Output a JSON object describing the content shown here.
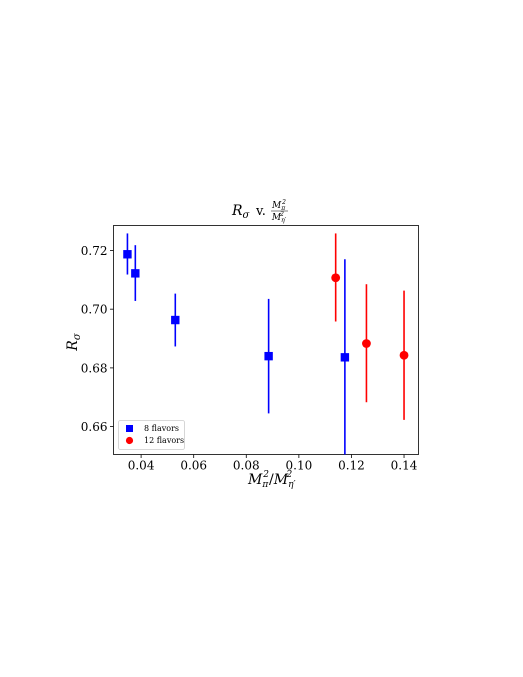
{
  "chart_data": {
    "type": "scatter",
    "title": {
      "lhs": "R",
      "lhs_sub": "σ",
      "connector": "v.",
      "num": "M",
      "num_sup": "2",
      "num_sub": "π",
      "den": "M",
      "den_sup": "2",
      "den_sub": "η′"
    },
    "xlabel": {
      "a": "M",
      "a_sup": "2",
      "a_sub": "π",
      "slash": "/",
      "b": "M",
      "b_sup": "2",
      "b_sub": "η′"
    },
    "ylabel": {
      "base": "R",
      "sub": "σ"
    },
    "xlim": [
      0.0295,
      0.1455
    ],
    "ylim": [
      0.6505,
      0.7285
    ],
    "xticks": [
      0.04,
      0.06,
      0.08,
      0.1,
      0.12,
      0.14
    ],
    "xtick_labels": [
      "0.04",
      "0.06",
      "0.08",
      "0.10",
      "0.12",
      "0.14"
    ],
    "yticks": [
      0.66,
      0.68,
      0.7,
      0.72
    ],
    "ytick_labels": [
      "0.66",
      "0.68",
      "0.70",
      "0.72"
    ],
    "grid": false,
    "legend_position": "lower-left",
    "series": [
      {
        "name": "8 flavors",
        "marker": "square",
        "color": "#0000ff",
        "points": [
          {
            "x": 0.0348,
            "y": 0.7187,
            "yerr_low": 0.7118,
            "yerr_high": 0.7258
          },
          {
            "x": 0.0378,
            "y": 0.7122,
            "yerr_low": 0.7028,
            "yerr_high": 0.7218
          },
          {
            "x": 0.053,
            "y": 0.6963,
            "yerr_low": 0.6873,
            "yerr_high": 0.7053
          },
          {
            "x": 0.0885,
            "y": 0.684,
            "yerr_low": 0.6645,
            "yerr_high": 0.7035
          },
          {
            "x": 0.1175,
            "y": 0.6836,
            "yerr_low": 0.6505,
            "yerr_high": 0.717
          }
        ]
      },
      {
        "name": "12 flavors",
        "marker": "circle",
        "color": "#ff0000",
        "points": [
          {
            "x": 0.114,
            "y": 0.7107,
            "yerr_low": 0.6958,
            "yerr_high": 0.7258
          },
          {
            "x": 0.1257,
            "y": 0.6883,
            "yerr_low": 0.6683,
            "yerr_high": 0.7085
          },
          {
            "x": 0.14,
            "y": 0.6843,
            "yerr_low": 0.6623,
            "yerr_high": 0.7063
          }
        ]
      }
    ]
  }
}
